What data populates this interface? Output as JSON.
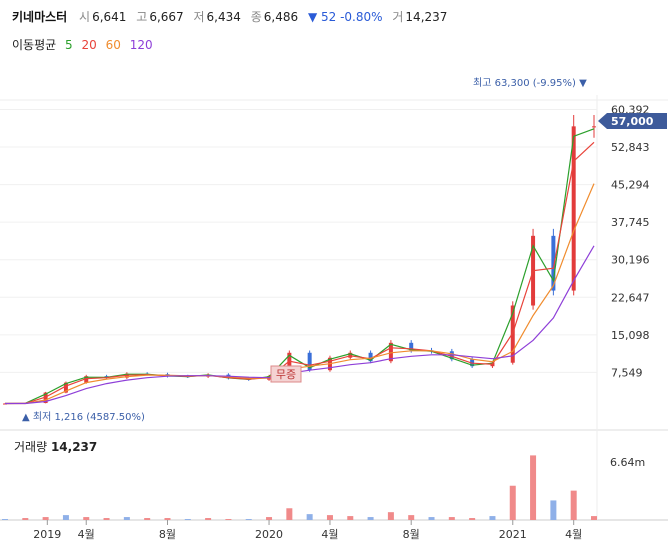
{
  "header": {
    "name": "키네마스터",
    "open_label": "시",
    "open": "6,641",
    "high_label": "고",
    "high": "6,667",
    "low_label": "저",
    "low": "6,434",
    "close_label": "종",
    "close": "6,486",
    "change": "▼ 52 -0.80%",
    "vol_label": "거",
    "volume": "14,237"
  },
  "ma_legend": {
    "title": "이동평균",
    "items": [
      {
        "label": "5",
        "color": "#2ca02c"
      },
      {
        "label": "20",
        "color": "#e8433a"
      },
      {
        "label": "60",
        "color": "#f08c2e"
      },
      {
        "label": "120",
        "color": "#8e3fd8"
      }
    ]
  },
  "annotations": {
    "high": "최고 63,300 (-9.95%) ▼",
    "low": "▲ 최저 1,216 (4587.50%)",
    "free_issue": "무증",
    "current_price": "57,000"
  },
  "volume_panel": {
    "label": "거래량",
    "value": "14,237",
    "max_tick": "6.64m"
  },
  "chart_data": {
    "type": "line",
    "y_ticks": [
      "60,392",
      "52,843",
      "45,294",
      "37,745",
      "30,196",
      "22,647",
      "15,098",
      "7,549"
    ],
    "y_tick_values": [
      60392,
      52843,
      45294,
      37745,
      30196,
      22647,
      15098,
      7549
    ],
    "x_ticks": [
      "2019",
      "4월",
      "8월",
      "2020",
      "4월",
      "8월",
      "2021",
      "4월"
    ],
    "x_tick_dates": [
      "2019-01",
      "2019-04",
      "2019-08",
      "2020-01",
      "2020-04",
      "2020-08",
      "2021-01",
      "2021-04"
    ],
    "price_series": {
      "x": [
        "2018-12",
        "2019-01",
        "2019-02",
        "2019-03",
        "2019-04",
        "2019-05",
        "2019-06",
        "2019-07",
        "2019-08",
        "2019-09",
        "2019-10",
        "2019-11",
        "2019-12",
        "2020-01",
        "2020-02",
        "2020-03",
        "2020-04",
        "2020-05",
        "2020-06",
        "2020-07",
        "2020-08",
        "2020-09",
        "2020-10",
        "2020-11",
        "2020-12",
        "2021-01",
        "2021-02",
        "2021-03",
        "2021-04",
        "2021-05"
      ],
      "close": [
        1300,
        1400,
        3500,
        5500,
        6800,
        6500,
        7300,
        7200,
        6800,
        6700,
        7100,
        6400,
        6100,
        6800,
        11500,
        8000,
        10500,
        11500,
        9800,
        13500,
        12000,
        11800,
        10200,
        8800,
        9500,
        21000,
        35000,
        24000,
        57000,
        57000
      ]
    },
    "ma": [
      {
        "name": "5",
        "color": "#2ca02c",
        "values": [
          1300,
          1350,
          3200,
          5300,
          6600,
          6550,
          7200,
          7200,
          6850,
          6700,
          7050,
          6450,
          6150,
          6700,
          11000,
          8500,
          10200,
          11300,
          10000,
          13200,
          12100,
          11800,
          10400,
          9000,
          9400,
          19500,
          33000,
          26000,
          55000,
          56500
        ]
      },
      {
        "name": "20",
        "color": "#e8433a",
        "values": [
          1300,
          1320,
          2600,
          4800,
          6300,
          6500,
          7000,
          7100,
          6900,
          6750,
          6950,
          6500,
          6200,
          6500,
          9800,
          9000,
          9800,
          10900,
          10300,
          12500,
          12300,
          11900,
          10800,
          9400,
          9200,
          15500,
          28000,
          28500,
          50000,
          53800
        ]
      },
      {
        "name": "60",
        "color": "#f08c2e",
        "values": [
          1300,
          1310,
          2000,
          3800,
          5500,
          6200,
          6700,
          7000,
          7000,
          6850,
          6900,
          6700,
          6400,
          6400,
          8200,
          8800,
          9300,
          10100,
          10400,
          11500,
          11900,
          11900,
          11300,
          10200,
          9700,
          11800,
          19000,
          25000,
          36000,
          45500
        ]
      },
      {
        "name": "120",
        "color": "#8e3fd8",
        "values": [
          1300,
          1305,
          1700,
          2900,
          4300,
          5300,
          6000,
          6500,
          6800,
          6900,
          6900,
          6800,
          6600,
          6500,
          7400,
          8000,
          8500,
          9100,
          9500,
          10300,
          10800,
          11100,
          11100,
          10700,
          10300,
          10900,
          14000,
          18500,
          26000,
          33000
        ]
      }
    ],
    "volume_max_m": 6.64,
    "volume_bars_m": [
      0.1,
      0.2,
      0.3,
      0.5,
      0.3,
      0.2,
      0.3,
      0.2,
      0.2,
      0.1,
      0.2,
      0.1,
      0.1,
      0.3,
      1.2,
      0.6,
      0.5,
      0.4,
      0.3,
      0.8,
      0.5,
      0.3,
      0.3,
      0.2,
      0.4,
      3.5,
      6.6,
      2.0,
      3.0,
      0.4
    ]
  }
}
